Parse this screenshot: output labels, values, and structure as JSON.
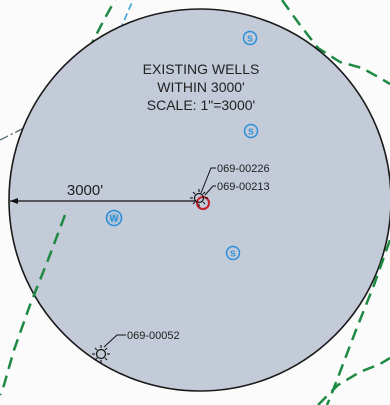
{
  "map": {
    "title_lines": [
      "EXISTING WELLS",
      "WITHIN 3000'",
      "SCALE: 1\"=3000'"
    ],
    "radius_label": "3000'",
    "well_ids": {
      "center_upper": "069-00226",
      "center_lower": "069-00213",
      "southwest": "069-00052"
    },
    "badge_labels": {
      "s": "S",
      "w": "W"
    },
    "colors": {
      "circle_fill": "#c3cad8",
      "circle_stroke": "#1a1a1a",
      "boundary_green": "#1f8a44",
      "stream_blue": "#3aa0d8",
      "dash_dot_gray": "#556b6f",
      "badge_blue": "#2a8fd8",
      "well_red": "#c81e2a",
      "text": "#222222"
    }
  }
}
